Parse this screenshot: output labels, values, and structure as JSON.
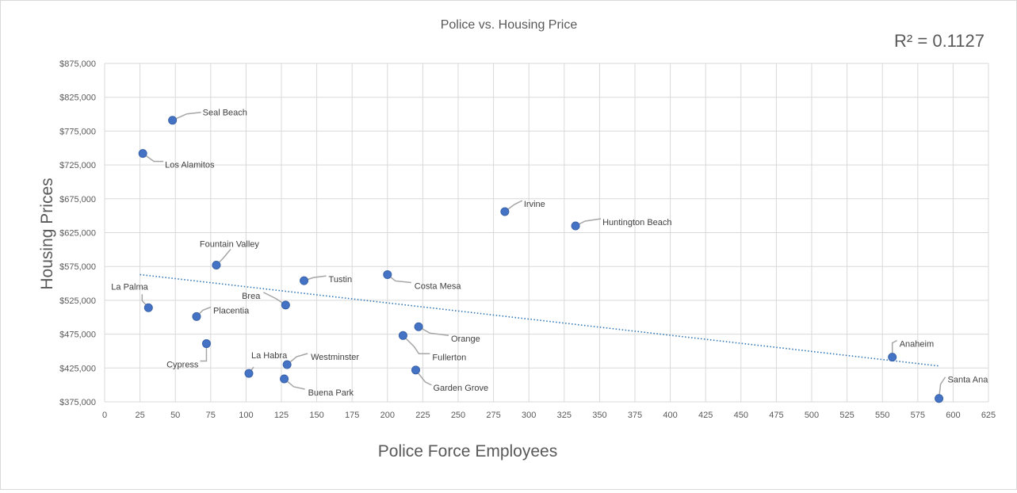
{
  "chart_data": {
    "type": "scatter",
    "title": "Police vs. Housing Price",
    "annotation": "R² = 0.1127",
    "xlabel": "Police Force Employees",
    "ylabel": "Housing Prices",
    "xlim": [
      0,
      625
    ],
    "ylim": [
      375000,
      875000
    ],
    "x_ticks": [
      0,
      25,
      50,
      75,
      100,
      125,
      150,
      175,
      200,
      225,
      250,
      275,
      300,
      325,
      350,
      375,
      400,
      425,
      450,
      475,
      500,
      525,
      550,
      575,
      600,
      625
    ],
    "y_ticks": [
      375000,
      425000,
      475000,
      525000,
      575000,
      625000,
      675000,
      725000,
      775000,
      825000,
      875000
    ],
    "y_tick_labels": [
      "$375,000",
      "$425,000",
      "$475,000",
      "$525,000",
      "$575,000",
      "$625,000",
      "$675,000",
      "$725,000",
      "$775,000",
      "$825,000",
      "$875,000"
    ],
    "grid": true,
    "trendline": {
      "style": "linear-dotted",
      "x_start": 25,
      "x_end": 590,
      "y_start": 563000,
      "y_end": 428000
    },
    "points": [
      {
        "label": "Seal Beach",
        "x": 48,
        "y": 791000
      },
      {
        "label": "Los Alamitos",
        "x": 27,
        "y": 742000
      },
      {
        "label": "Irvine",
        "x": 283,
        "y": 656000
      },
      {
        "label": "Huntington Beach",
        "x": 333,
        "y": 635000
      },
      {
        "label": "Fountain Valley",
        "x": 79,
        "y": 577000
      },
      {
        "label": "Tustin",
        "x": 141,
        "y": 554000
      },
      {
        "label": "Costa Mesa",
        "x": 200,
        "y": 563000
      },
      {
        "label": "La Palma",
        "x": 31,
        "y": 514000
      },
      {
        "label": "Brea",
        "x": 128,
        "y": 518000
      },
      {
        "label": "Placentia",
        "x": 65,
        "y": 501000
      },
      {
        "label": "Orange",
        "x": 222,
        "y": 486000
      },
      {
        "label": "Fullerton",
        "x": 211,
        "y": 473000
      },
      {
        "label": "Cypress",
        "x": 72,
        "y": 461000
      },
      {
        "label": "La Habra",
        "x": 102,
        "y": 417000
      },
      {
        "label": "Westminster",
        "x": 129,
        "y": 430000
      },
      {
        "label": "Buena Park",
        "x": 127,
        "y": 409000
      },
      {
        "label": "Garden Grove",
        "x": 220,
        "y": 422000
      },
      {
        "label": "Anaheim",
        "x": 557,
        "y": 441000
      },
      {
        "label": "Santa Ana",
        "x": 590,
        "y": 380000
      }
    ]
  }
}
